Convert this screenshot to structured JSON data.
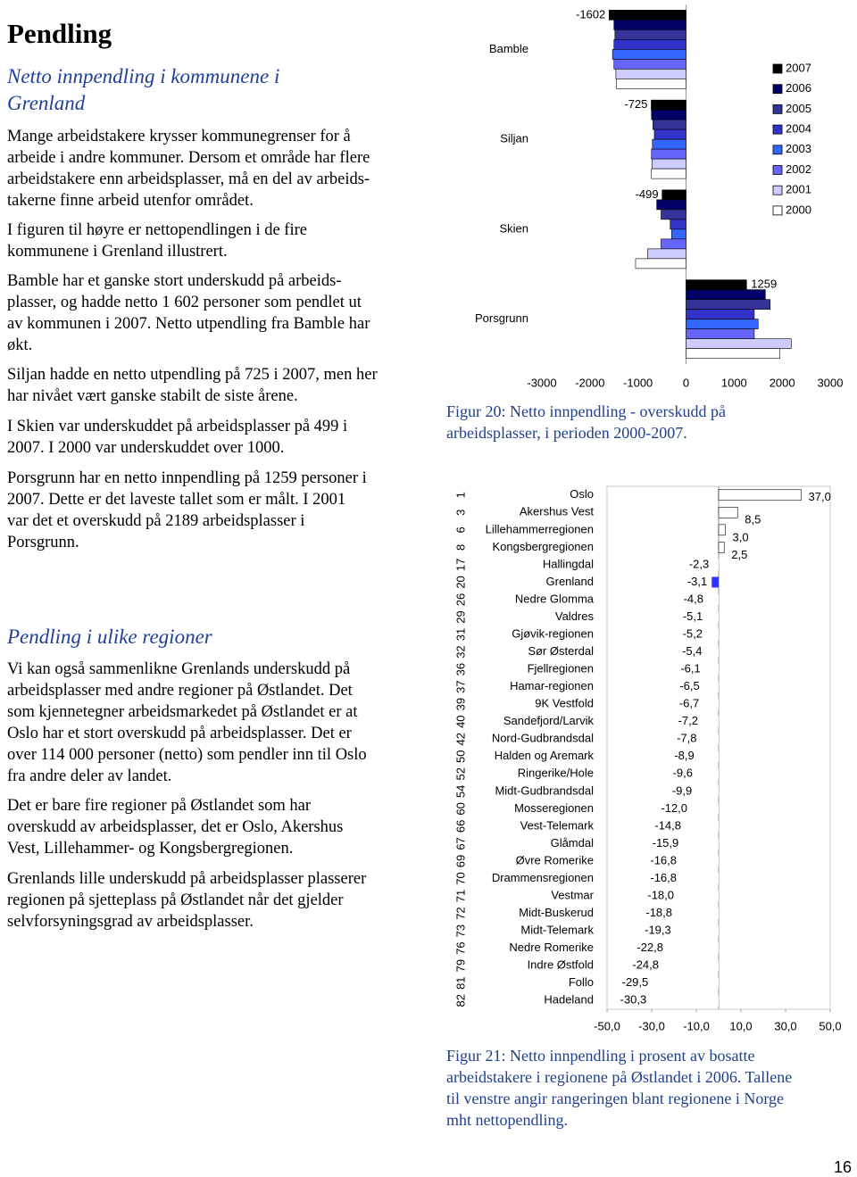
{
  "header": {
    "title": "Pendling"
  },
  "sections": [
    {
      "heading": [
        "Netto innpendling i kommunene i",
        "Grenland"
      ],
      "paragraphs": [
        [
          "Mange arbeidstakere krysser kommunegrenser for å",
          "arbeide i andre kommuner. Dersom et område har flere",
          "arbeidstakere enn arbeidsplasser, må en del av arbeids-",
          "takerne finne arbeid utenfor området."
        ],
        [
          "I figuren til høyre er nettopendlingen i de fire",
          "kommunene i Grenland illustrert."
        ],
        [
          "Bamble har et ganske stort underskudd på arbeids-",
          "plasser, og hadde netto 1 602 personer som pendlet ut",
          "av kommunen i 2007. Netto utpendling fra Bamble har",
          "økt."
        ],
        [
          "Siljan hadde en netto utpendling på 725 i 2007, men her",
          "har nivået vært ganske stabilt de siste årene."
        ],
        [
          "I Skien var underskuddet på arbeidsplasser på 499 i",
          "2007. I 2000 var underskuddet over 1000."
        ],
        [
          "Porsgrunn har en netto innpendling på 1259 personer i",
          "2007. Dette er det laveste tallet som er målt. I 2001",
          "var det et overskudd på 2189 arbeidsplasser i",
          "Porsgrunn."
        ]
      ]
    },
    {
      "heading": [
        "Pendling i ulike regioner"
      ],
      "paragraphs": [
        [
          "Vi kan også sammenlikne Grenlands underskudd på",
          "arbeidsplasser med andre regioner på Østlandet. Det",
          "som kjennetegner arbeidsmarkedet på Østlandet er at",
          "Oslo har et stort overskudd på arbeidsplasser. Det er",
          "over 114 000 personer (netto) som pendler inn til Oslo",
          "fra andre deler av landet."
        ],
        [
          "Det er bare fire regioner på Østlandet som har",
          "overskudd av arbeidsplasser, det er Oslo, Akershus",
          "Vest, Lillehammer- og Kongsbergregionen."
        ],
        [
          "Grenlands lille underskudd på arbeidsplasser plasserer",
          "regionen på sjetteplass på Østlandet når det gjelder",
          "selvforsyningsgrad av arbeidsplasser."
        ]
      ]
    }
  ],
  "chart_data": [
    {
      "type": "hbar-grouped",
      "categories": [
        "Bamble",
        "Siljan",
        "Skien",
        "Porsgrunn"
      ],
      "series": [
        {
          "name": "2007",
          "color": "#000000",
          "show_labels": true,
          "values": [
            -1602,
            -725,
            -499,
            1259
          ]
        },
        {
          "name": "2006",
          "color": "#000066",
          "values": [
            -1500,
            -720,
            -610,
            1650
          ]
        },
        {
          "name": "2005",
          "color": "#333399",
          "values": [
            -1480,
            -690,
            -520,
            1750
          ]
        },
        {
          "name": "2004",
          "color": "#3333cc",
          "values": [
            -1500,
            -660,
            -330,
            1420
          ]
        },
        {
          "name": "2003",
          "color": "#3366ff",
          "values": [
            -1530,
            -700,
            -300,
            1500
          ]
        },
        {
          "name": "2002",
          "color": "#6666ff",
          "values": [
            -1500,
            -720,
            -520,
            1420
          ]
        },
        {
          "name": "2001",
          "color": "#ccccff",
          "values": [
            -1460,
            -710,
            -800,
            2189
          ]
        },
        {
          "name": "2000",
          "color": "#ffffff",
          "values": [
            -1450,
            -720,
            -1050,
            1950
          ]
        }
      ],
      "xlim": [
        -3000,
        3000
      ],
      "xticks": [
        -3000,
        -2000,
        -1000,
        0,
        1000,
        2000,
        3000
      ],
      "legend": "right"
    },
    {
      "type": "hbar",
      "ranks": [
        "1",
        "3",
        "6",
        "8",
        "17",
        "20",
        "26",
        "29",
        "31",
        "32",
        "36",
        "37",
        "39",
        "40",
        "42",
        "50",
        "52",
        "54",
        "60",
        "66",
        "67",
        "69",
        "70",
        "71",
        "72",
        "73",
        "76",
        "79",
        "81",
        "82"
      ],
      "categories": [
        "Oslo",
        "Akershus Vest",
        "Lillehammerregionen",
        "Kongsbergregionen",
        "Hallingdal",
        "Grenland",
        "Nedre Glomma",
        "Valdres",
        "Gjøvik-regionen",
        "Sør Østerdal",
        "Fjellregionen",
        "Hamar-regionen",
        "9K Vestfold",
        "Sandefjord/Larvik",
        "Nord-Gudbrandsdal",
        "Halden og Aremark",
        "Ringerike/Hole",
        "Midt-Gudbrandsdal",
        "Mosseregionen",
        "Vest-Telemark",
        "Glåmdal",
        "Øvre Romerike",
        "Drammensregionen",
        "Vestmar",
        "Midt-Buskerud",
        "Midt-Telemark",
        "Nedre Romerike",
        "Indre Østfold",
        "Follo",
        "Hadeland"
      ],
      "values": [
        37.0,
        8.5,
        3.0,
        2.5,
        -2.3,
        -3.1,
        -4.8,
        -5.1,
        -5.2,
        -5.4,
        -6.1,
        -6.5,
        -6.7,
        -7.2,
        -7.8,
        -8.9,
        -9.6,
        -9.9,
        -12.0,
        -14.8,
        -15.9,
        -16.8,
        -16.8,
        -18.0,
        -18.8,
        -19.3,
        -22.8,
        -24.8,
        -29.5,
        -30.3
      ],
      "value_labels": [
        "37,0",
        "8,5",
        "3,0",
        "2,5",
        "-2,3",
        "-3,1",
        "-4,8",
        "-5,1",
        "-5,2",
        "-5,4",
        "-6,1",
        "-6,5",
        "-6,7",
        "-7,2",
        "-7,8",
        "-8,9",
        "-9,6",
        "-9,9",
        "-12,0",
        "-14,8",
        "-15,9",
        "-16,8",
        "-16,8",
        "-18,0",
        "-18,8",
        "-19,3",
        "-22,8",
        "-24,8",
        "-29,5",
        "-30,3"
      ],
      "color": "#ffffff",
      "highlight": {
        "category": "Grenland",
        "color": "#3333ff"
      },
      "xlim": [
        -50,
        50
      ],
      "xticks": [
        {
          "value": -50,
          "label": "-50,0"
        },
        {
          "value": -30,
          "label": "-30,0"
        },
        {
          "value": -10,
          "label": "-10,0"
        },
        {
          "value": 10,
          "label": "10,0"
        },
        {
          "value": 30,
          "label": "30,0"
        },
        {
          "value": 50,
          "label": "50,0"
        }
      ]
    }
  ],
  "captions": [
    [
      "Figur 20: Netto innpendling - overskudd på",
      "arbeidsplasser, i perioden 2000-2007."
    ],
    [
      "Figur 21: Netto innpendling i prosent av bosatte",
      "arbeidstakere i regionene på Østlandet i 2006. Tallene",
      "til venstre angir rangeringen blant regionene i Norge",
      "mht nettopendling."
    ]
  ],
  "page_number": "16"
}
